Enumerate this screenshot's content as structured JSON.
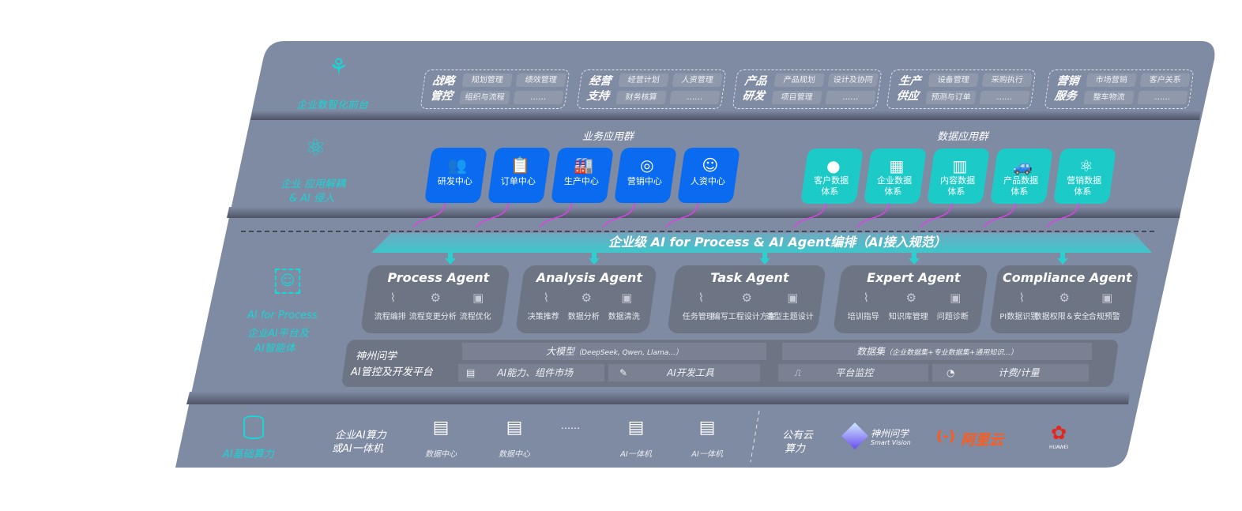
{
  "colors": {
    "panel": "#7f8aa3",
    "business_tile": "#0a6bf0",
    "data_tile": "#1ccbc8",
    "accent_label": "#19d6d6",
    "arrow": "#e040e8",
    "card": "#6d7484"
  },
  "layer1": {
    "label": "企业数智化前台",
    "icon": "brain-icon",
    "groups": [
      {
        "title": "战略管控",
        "items": [
          "规划管理",
          "绩效管理",
          "组织与流程",
          "……"
        ]
      },
      {
        "title": "经营支持",
        "items": [
          "经营计划",
          "人资管理",
          "财务核算",
          "……"
        ]
      },
      {
        "title": "产品研发",
        "items": [
          "产品规划",
          "设计及协同",
          "项目管理",
          "……"
        ]
      },
      {
        "title": "生产供应",
        "items": [
          "设备管理",
          "采购执行",
          "预测与订单",
          "……"
        ]
      },
      {
        "title": "营销服务",
        "items": [
          "市场营销",
          "客户关系",
          "整车物流",
          "……"
        ]
      }
    ]
  },
  "layer2": {
    "label_line1": "企业 应用解耦",
    "label_line2": "& AI 侵入",
    "icon": "molecule-icon",
    "business_title": "业务应用群",
    "business": [
      {
        "label": "研发中心",
        "icon": "users-icon"
      },
      {
        "label": "订单中心",
        "icon": "clipboard-icon"
      },
      {
        "label": "生产中心",
        "icon": "factory-icon"
      },
      {
        "label": "营销中心",
        "icon": "target-icon"
      },
      {
        "label": "人资中心",
        "icon": "person-icon"
      }
    ],
    "data_title": "数据应用群",
    "data": [
      {
        "label1": "客户数据",
        "label2": "体系",
        "icon": "user-icon"
      },
      {
        "label1": "企业数据",
        "label2": "体系",
        "icon": "building-icon"
      },
      {
        "label1": "内容数据",
        "label2": "体系",
        "icon": "books-icon"
      },
      {
        "label1": "产品数据",
        "label2": "体系",
        "icon": "car-icon"
      },
      {
        "label1": "营销数据",
        "label2": "体系",
        "icon": "atom-icon"
      }
    ]
  },
  "banner": "企业级 AI for Process & AI Agent编排（AI接入规范）",
  "layer3": {
    "label_line1": "AI for Process",
    "label_line2": "企业AI平台及",
    "label_line3": "AI智能体",
    "icon": "face-scan-icon",
    "agents": [
      {
        "title": "Process Agent",
        "features": [
          "流程编排",
          "流程变更分析",
          "流程优化"
        ]
      },
      {
        "title": "Analysis Agent",
        "features": [
          "决策推荐",
          "数据分析",
          "数据清洗"
        ]
      },
      {
        "title": "Task Agent",
        "features": [
          "任务管理",
          "编写工程设计方案",
          "造型主题设计"
        ]
      },
      {
        "title": "Expert Agent",
        "features": [
          "培训指导",
          "知识库管理",
          "问题诊断"
        ]
      },
      {
        "title": "Compliance Agent",
        "features": [
          "PI数据识别",
          "数据权限＆安全",
          "合规预警"
        ]
      }
    ],
    "platform": {
      "title_line1": "神州问学",
      "title_line2": "AI管控及开发平台",
      "model": "大模型",
      "model_note": "（DeepSeek, Qwen, Llama...）",
      "market": "AI能力、组件市场",
      "devtools": "AI开发工具",
      "dataset": "数据集",
      "dataset_note": "（企业数据集+专业数据集+通用知识...）",
      "monitor": "平台监控",
      "billing": "计费/计量"
    }
  },
  "layer4": {
    "label": "AI基础算力",
    "icon": "database-icon",
    "private_line1": "企业AI算力",
    "private_line2": "或AI一体机",
    "servers": [
      "数据中心",
      "数据中心",
      "AI一体机",
      "AI一体机"
    ],
    "ellipsis": "……",
    "public_line1": "公有云",
    "public_line2": "算力",
    "vendors": {
      "smart_vision_cn": "神州问学",
      "smart_vision_en": "Smart Vision",
      "aliyun": "阿里云",
      "aliyun_mark": "(-)",
      "huawei": "HUAWEI"
    }
  }
}
